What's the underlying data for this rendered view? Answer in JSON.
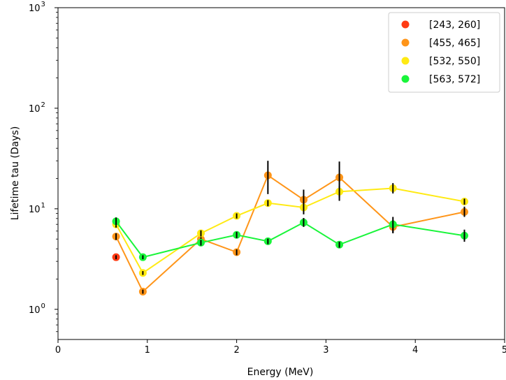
{
  "chart_data": {
    "type": "scatter",
    "xlabel": "Energy (MeV)",
    "ylabel": "Lifetime tau (Days)",
    "xlim": [
      0,
      5
    ],
    "ylim_log10": [
      -0.3,
      3
    ],
    "yscale": "log",
    "x_ticks": [
      "0",
      "1",
      "2",
      "3",
      "4",
      "5"
    ],
    "y_ticks": [
      {
        "base": "10",
        "exp": "0"
      },
      {
        "base": "10",
        "exp": "1"
      },
      {
        "base": "10",
        "exp": "2"
      },
      {
        "base": "10",
        "exp": "3"
      }
    ],
    "legend_placement": "top-right",
    "grid": false,
    "series": [
      {
        "name": "[243, 260]",
        "color": "#ff3b14",
        "connect": false,
        "points": [
          {
            "x": 0.65,
            "y": 3.3,
            "lo": 3.15,
            "hi": 3.45
          }
        ]
      },
      {
        "name": "[455, 465]",
        "color": "#ff9519",
        "connect": true,
        "points": [
          {
            "x": 0.65,
            "y": 5.3,
            "lo": 4.9,
            "hi": 5.7
          },
          {
            "x": 0.95,
            "y": 1.5,
            "lo": 1.43,
            "hi": 1.57
          },
          {
            "x": 1.6,
            "y": 5.0,
            "lo": 4.5,
            "hi": 5.6
          },
          {
            "x": 2.0,
            "y": 3.7,
            "lo": 3.45,
            "hi": 3.95
          },
          {
            "x": 2.35,
            "y": 21.5,
            "lo": 14.0,
            "hi": 30.0
          },
          {
            "x": 2.75,
            "y": 12.3,
            "lo": 9.5,
            "hi": 15.5
          },
          {
            "x": 3.15,
            "y": 20.5,
            "lo": 12.0,
            "hi": 29.5
          },
          {
            "x": 3.75,
            "y": 6.6,
            "lo": 5.7,
            "hi": 7.7
          },
          {
            "x": 4.55,
            "y": 9.3,
            "lo": 8.3,
            "hi": 10.5
          }
        ]
      },
      {
        "name": "[532, 550]",
        "color": "#ffea13",
        "connect": true,
        "points": [
          {
            "x": 0.65,
            "y": 7.0,
            "lo": 6.5,
            "hi": 7.5
          },
          {
            "x": 0.95,
            "y": 2.3,
            "lo": 2.2,
            "hi": 2.4
          },
          {
            "x": 1.6,
            "y": 5.7,
            "lo": 5.3,
            "hi": 6.1
          },
          {
            "x": 2.0,
            "y": 8.5,
            "lo": 8.0,
            "hi": 9.0
          },
          {
            "x": 2.35,
            "y": 11.4,
            "lo": 10.6,
            "hi": 12.2
          },
          {
            "x": 2.75,
            "y": 10.3,
            "lo": 8.8,
            "hi": 12.0
          },
          {
            "x": 3.15,
            "y": 14.8,
            "lo": 13.0,
            "hi": 16.8
          },
          {
            "x": 3.75,
            "y": 16.0,
            "lo": 14.2,
            "hi": 18.0
          },
          {
            "x": 4.55,
            "y": 11.8,
            "lo": 11.0,
            "hi": 12.6
          }
        ]
      },
      {
        "name": "[563, 572]",
        "color": "#19f53a",
        "connect": true,
        "points": [
          {
            "x": 0.65,
            "y": 7.5,
            "lo": 6.9,
            "hi": 8.2
          },
          {
            "x": 0.95,
            "y": 3.3,
            "lo": 3.15,
            "hi": 3.45
          },
          {
            "x": 1.6,
            "y": 4.6,
            "lo": 4.3,
            "hi": 4.9
          },
          {
            "x": 2.0,
            "y": 5.5,
            "lo": 5.1,
            "hi": 5.9
          },
          {
            "x": 2.35,
            "y": 4.75,
            "lo": 4.45,
            "hi": 5.05
          },
          {
            "x": 2.75,
            "y": 7.3,
            "lo": 6.6,
            "hi": 8.1
          },
          {
            "x": 3.15,
            "y": 4.4,
            "lo": 4.1,
            "hi": 4.7
          },
          {
            "x": 3.75,
            "y": 7.0,
            "lo": 5.8,
            "hi": 8.3
          },
          {
            "x": 4.55,
            "y": 5.4,
            "lo": 4.7,
            "hi": 6.2
          }
        ]
      }
    ]
  }
}
